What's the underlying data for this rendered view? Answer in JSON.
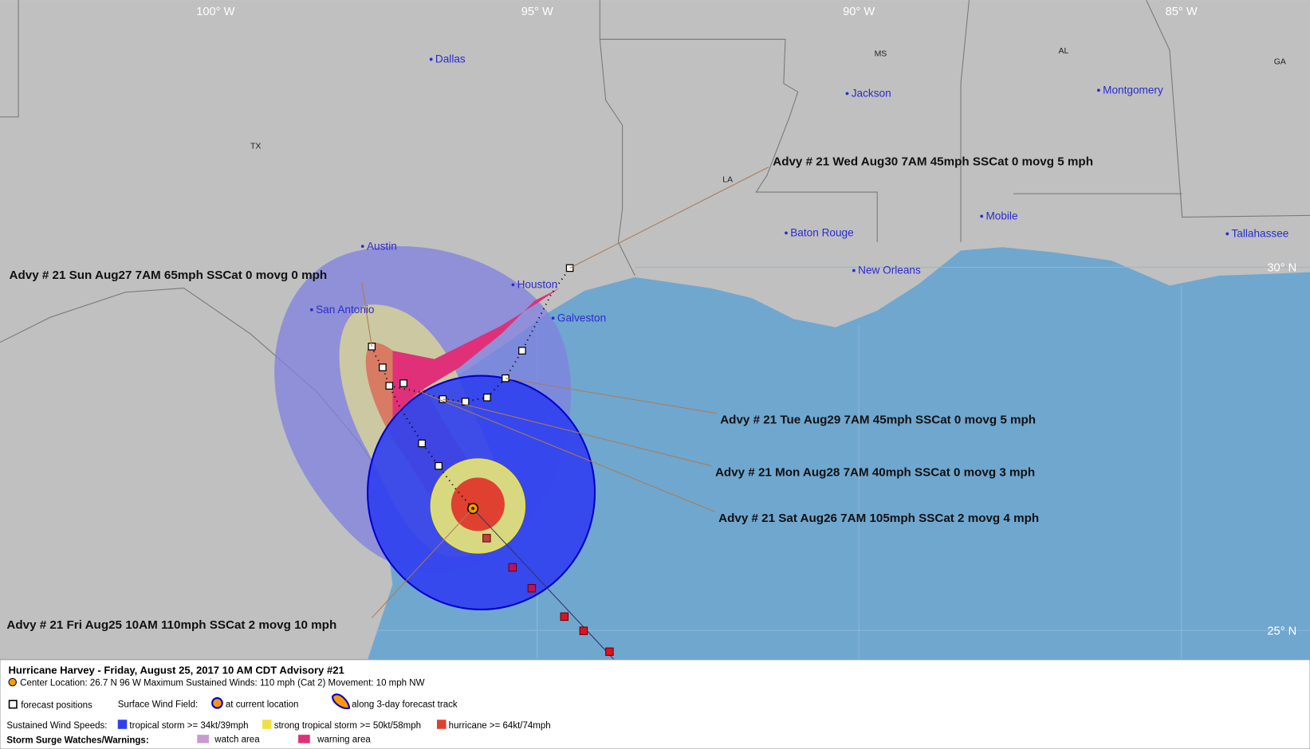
{
  "grid_labels": {
    "longitudes": [
      "100° W",
      "95° W",
      "90° W",
      "85° W"
    ],
    "latitudes": [
      "30° N",
      "25° N"
    ]
  },
  "states": [
    "TX",
    "LA",
    "MS",
    "AL",
    "GA"
  ],
  "cities": [
    "Dallas",
    "Austin",
    "San Antonio",
    "Houston",
    "Galveston",
    "Jackson",
    "Montgomery",
    "Baton Rouge",
    "New Orleans",
    "Mobile",
    "Tallahassee"
  ],
  "advisories": [
    "Advy # 21 Wed Aug30 7AM  45mph SSCat 0 movg 5 mph",
    "Advy # 21 Sun Aug27 7AM  65mph SSCat 0 movg 0 mph",
    "Advy # 21 Tue Aug29 7AM  45mph SSCat 0 movg 5 mph",
    "Advy # 21 Mon Aug28 7AM  40mph SSCat 0 movg 3 mph",
    "Advy # 21 Sat Aug26 7AM  105mph SSCat 2 movg 4 mph",
    "Advy # 21 Fri Aug25 10AM  110mph SSCat 2 movg 10 mph"
  ],
  "legend": {
    "title": "Hurricane Harvey  -  Friday, August 25, 2017  10 AM CDT   Advisory #21",
    "center_info": "Center Location: 26.7 N  96 W   Maximum Sustained Winds: 110 mph (Cat 2) Movement: 10 mph NW",
    "forecast_positions": "forecast positions",
    "surface_wind_field": "Surface Wind Field:",
    "at_current_location": "at current location",
    "along_track": "along 3-day forecast track",
    "sustained_wind_speeds": "Sustained Wind Speeds:",
    "tropical_storm": "tropical storm >= 34kt/39mph",
    "strong_tropical_storm": "strong tropical storm >= 50kt/58mph",
    "hurricane": "hurricane >= 64kt/74mph",
    "storm_surge": "Storm Surge Watches/Warnings:",
    "watch_area": "watch area",
    "warning_area": "warning area"
  }
}
